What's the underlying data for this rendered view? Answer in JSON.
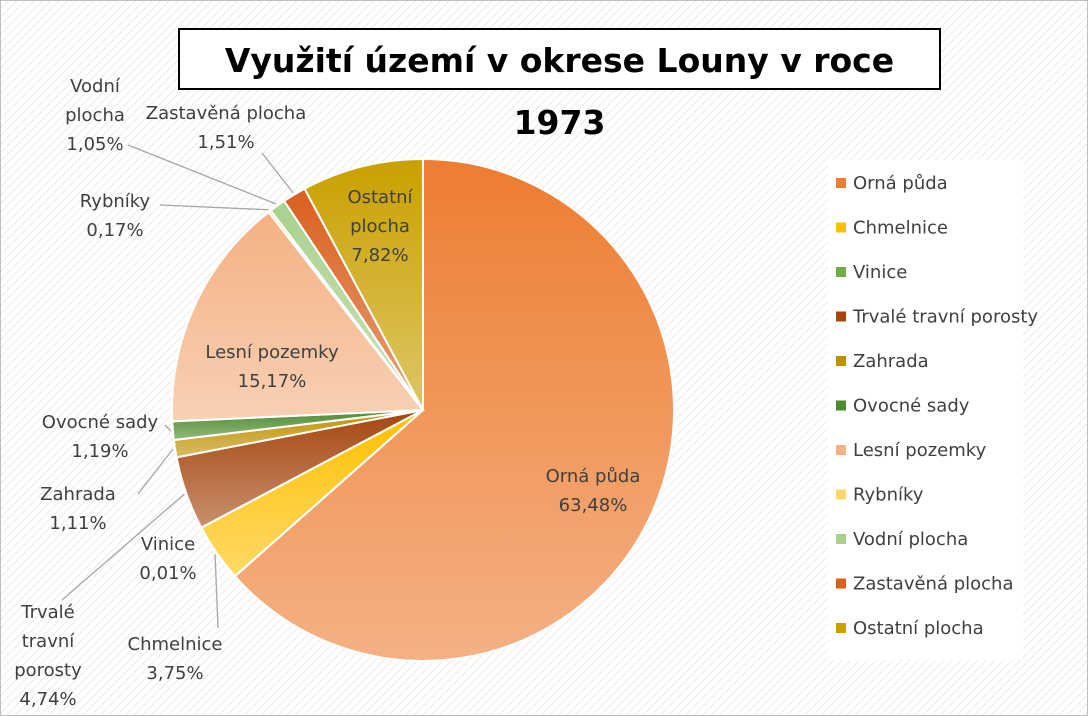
{
  "chart_data": {
    "type": "pie",
    "title": "Využití území v okrese Louny v roce 1973",
    "categories": [
      "Orná půda",
      "Chmelnice",
      "Vinice",
      "Trvalé travní porosty",
      "Zahrada",
      "Ovocné sady",
      "Lesní pozemky",
      "Rybníky",
      "Vodní plocha",
      "Zastavěná plocha",
      "Ostatní plocha"
    ],
    "values": [
      63.48,
      3.75,
      0.01,
      4.74,
      1.11,
      1.19,
      15.17,
      0.17,
      1.05,
      1.51,
      7.82
    ],
    "value_labels": [
      "63,48%",
      "3,75%",
      "0,01%",
      "4,74%",
      "1,11%",
      "1,19%",
      "15,17%",
      "0,17%",
      "1,05%",
      "1,51%",
      "7,82%"
    ],
    "colors": [
      "#ED7D31",
      "#FFC000",
      "#70AD47",
      "#A5460F",
      "#BF9000",
      "#4E8A2E",
      "#F4B183",
      "#FFD966",
      "#A9D18E",
      "#D9601E",
      "#C9A000"
    ],
    "legend": "right"
  }
}
